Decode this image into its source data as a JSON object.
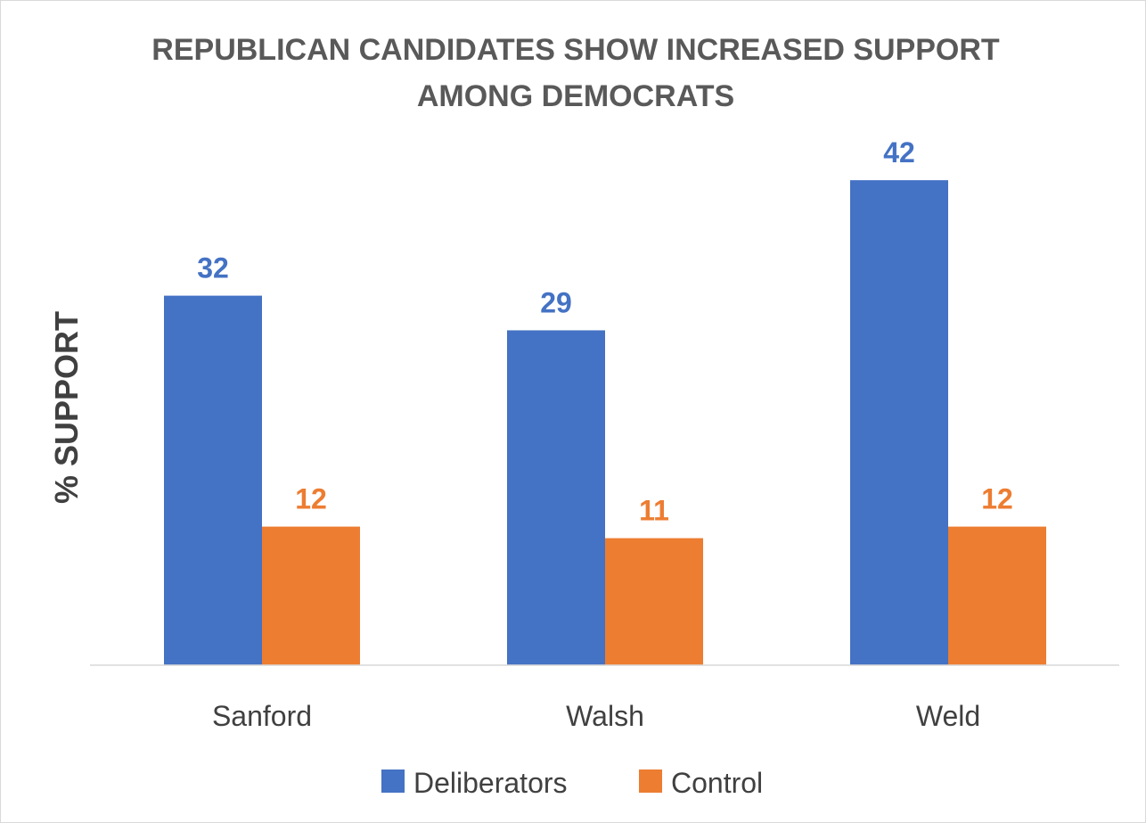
{
  "chart_data": {
    "type": "bar",
    "title": "REPUBLICAN CANDIDATES SHOW INCREASED SUPPORT AMONG DEMOCRATS",
    "title_lines": [
      "REPUBLICAN CANDIDATES SHOW INCREASED SUPPORT",
      "AMONG DEMOCRATS"
    ],
    "xlabel": "",
    "ylabel": "% SUPPORT",
    "ylim": [
      0,
      42
    ],
    "grid": false,
    "legend_position": "bottom",
    "categories": [
      "Sanford",
      "Walsh",
      "Weld"
    ],
    "series": [
      {
        "name": "Deliberators",
        "color": "#4472C4",
        "values": [
          32,
          29,
          42
        ]
      },
      {
        "name": "Control",
        "color": "#ED7D31",
        "values": [
          12,
          11,
          12
        ]
      }
    ]
  }
}
